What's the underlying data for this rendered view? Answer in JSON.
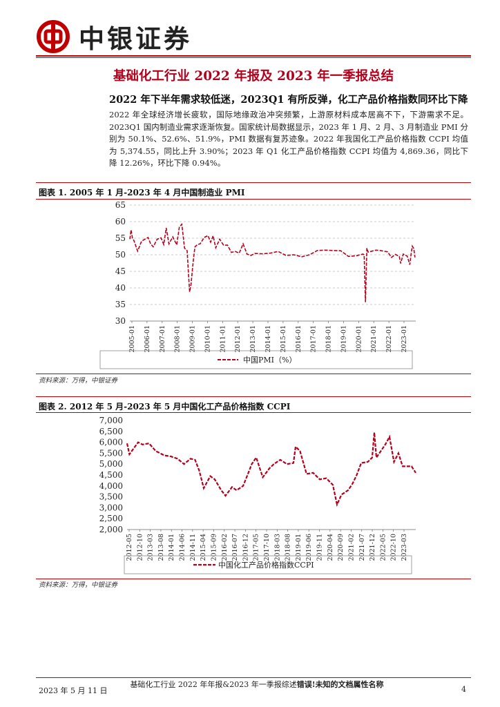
{
  "header": {
    "brand": "中银证券",
    "logo_icon": "bank-of-china-logo-icon",
    "accent_color": "#c00000"
  },
  "doc_title": "基础化工行业 2022 年报及 2023 年一季报总结",
  "section": {
    "heading": "2022 年下半年需求较低迷，2023Q1 有所反弹，化工产品价格指数同环比下降",
    "paragraph": "2022 年全球经济增长疲软，国际地缘政治冲突频繁，上游原材料成本居高不下，下游需求不足。2023Q1 国内制造业需求逐渐恢复。国家统计局数据显示，2023 年 1 月、2 月、3 月制造业 PMI 分别为 50.1%、52.6%、51.9%，PMI 数据有复苏迹象。2022 年我国化工产品价格指数 CCPI 均值为 5,374.55，同比上升 3.90%；2023 年 Q1 化工产品价格指数 CCPI 均值为 4,869.36，同比下降 12.26%，环比下降 0.94%。"
  },
  "figure1": {
    "title": "图表 1. 2005 年 1 月-2023 年 4 月中国制造业 PMI",
    "source": "资料来源：万得，中银证券",
    "chart_data": {
      "type": "line",
      "y_ticks": [
        "65",
        "60",
        "55",
        "50",
        "45",
        "40",
        "35",
        "30"
      ],
      "ylim": [
        30,
        65
      ],
      "x_tick_labels": [
        "2005-01",
        "2006-01",
        "2007-01",
        "2008-01",
        "2009-01",
        "2010-01",
        "2011-01",
        "2012-01",
        "2013-01",
        "2014-01",
        "2015-01",
        "2016-01",
        "2017-01",
        "2018-01",
        "2019-01",
        "2020-01",
        "2021-01",
        "2022-01",
        "2023-01"
      ],
      "xlim": [
        2005.0,
        2023.3
      ],
      "grid": "horizontal dashed",
      "legend_position": "bottom",
      "series": [
        {
          "name": "中国PMI（%）",
          "color": "#b3001b",
          "x": [
            2005.0,
            2005.08,
            2005.17,
            2005.25,
            2005.5,
            2005.75,
            2006.0,
            2006.17,
            2006.33,
            2006.5,
            2006.75,
            2007.0,
            2007.17,
            2007.33,
            2007.5,
            2007.75,
            2008.0,
            2008.17,
            2008.33,
            2008.5,
            2008.67,
            2008.75,
            2008.83,
            2008.92,
            2009.0,
            2009.08,
            2009.17,
            2009.33,
            2009.5,
            2009.75,
            2010.0,
            2010.17,
            2010.33,
            2010.5,
            2010.75,
            2011.0,
            2011.25,
            2011.5,
            2011.75,
            2012.0,
            2012.25,
            2012.5,
            2012.75,
            2013.0,
            2013.5,
            2014.0,
            2014.5,
            2015.0,
            2015.5,
            2016.0,
            2016.5,
            2017.0,
            2017.5,
            2018.0,
            2018.5,
            2019.0,
            2019.5,
            2019.92,
            2020.0,
            2020.08,
            2020.17,
            2020.25,
            2020.5,
            2020.75,
            2021.0,
            2021.25,
            2021.5,
            2021.75,
            2022.0,
            2022.25,
            2022.33,
            2022.5,
            2022.75,
            2022.92,
            2023.0,
            2023.08,
            2023.17,
            2023.25
          ],
          "values": [
            54.7,
            57.5,
            55.0,
            54.4,
            51.1,
            54.1,
            54.8,
            55.2,
            53.3,
            52.4,
            54.7,
            55.1,
            53.1,
            58.1,
            53.3,
            55.4,
            53.0,
            58.4,
            59.2,
            52.0,
            51.2,
            44.6,
            38.8,
            41.2,
            45.3,
            49.0,
            52.4,
            53.1,
            53.3,
            55.2,
            55.8,
            53.8,
            55.7,
            52.1,
            54.7,
            52.9,
            52.9,
            50.7,
            51.0,
            50.5,
            53.3,
            50.2,
            49.8,
            50.4,
            50.3,
            50.5,
            51.0,
            49.8,
            50.0,
            49.4,
            50.0,
            51.3,
            51.4,
            51.3,
            51.2,
            49.5,
            49.7,
            50.2,
            50.0,
            35.7,
            52.0,
            50.8,
            51.1,
            51.4,
            51.3,
            51.1,
            50.9,
            49.2,
            50.1,
            49.5,
            47.4,
            50.2,
            49.6,
            47.0,
            50.1,
            52.6,
            51.9,
            49.2
          ]
        }
      ]
    }
  },
  "figure2": {
    "title": "图表 2. 2012 年 5 月-2023 年 5 月中国化工产品价格指数 CCPI",
    "source": "资料来源：万得，中银证券",
    "chart_data": {
      "type": "line",
      "y_ticks": [
        "7,000",
        "6,500",
        "6,000",
        "5,500",
        "5,000",
        "4,500",
        "4,000",
        "3,500",
        "3,000",
        "2,500",
        "2,000"
      ],
      "ylim": [
        2000,
        7000
      ],
      "x_tick_labels": [
        "2012-05",
        "2012-10",
        "2013-03",
        "2013-08",
        "2014-01",
        "2014-06",
        "2014-11",
        "2015-04",
        "2015-09",
        "2016-02",
        "2016-07",
        "2016-12",
        "2017-05",
        "2017-10",
        "2018-03",
        "2018-08",
        "2019-01",
        "2019-06",
        "2019-11",
        "2020-04",
        "2020-09",
        "2021-02",
        "2021-07",
        "2021-12",
        "2022-05",
        "2022-10",
        "2023-03"
      ],
      "xlim": [
        2012.33,
        2023.33
      ],
      "grid": "none",
      "legend_position": "bottom",
      "series": [
        {
          "name": "中国化工产品价格指数CCPI",
          "color": "#b3001b",
          "x": [
            2012.33,
            2012.42,
            2012.75,
            2012.92,
            2013.17,
            2013.42,
            2013.75,
            2014.0,
            2014.25,
            2014.5,
            2014.75,
            2014.92,
            2015.08,
            2015.25,
            2015.5,
            2015.67,
            2015.92,
            2016.08,
            2016.33,
            2016.5,
            2016.75,
            2016.92,
            2017.08,
            2017.25,
            2017.5,
            2017.75,
            2017.92,
            2018.17,
            2018.42,
            2018.67,
            2018.75,
            2018.92,
            2019.17,
            2019.42,
            2019.67,
            2019.92,
            2020.17,
            2020.33,
            2020.5,
            2020.75,
            2020.92,
            2021.08,
            2021.25,
            2021.5,
            2021.67,
            2021.75,
            2021.83,
            2022.0,
            2022.17,
            2022.33,
            2022.5,
            2022.67,
            2022.83,
            2023.0,
            2023.17,
            2023.33
          ],
          "values": [
            5950,
            5450,
            6000,
            5900,
            5950,
            5600,
            5400,
            5350,
            5250,
            5000,
            5250,
            5200,
            4700,
            3900,
            4450,
            4300,
            3800,
            3550,
            3950,
            3800,
            4000,
            4500,
            5000,
            5300,
            4400,
            4800,
            5000,
            5200,
            5000,
            5050,
            5800,
            5600,
            4550,
            4600,
            4300,
            4350,
            4050,
            3150,
            3600,
            3800,
            4100,
            4500,
            5050,
            5100,
            5300,
            6450,
            5300,
            5600,
            5900,
            6250,
            5100,
            5500,
            4900,
            4900,
            4900,
            4600
          ]
        }
      ]
    }
  },
  "footer": {
    "date": "2023 年 5 月 11 日",
    "center_text": "基础化工行业 2022 年年报&2023 年一季报综述",
    "center_error": "错误!未知的文档属性名称",
    "page": "4"
  }
}
